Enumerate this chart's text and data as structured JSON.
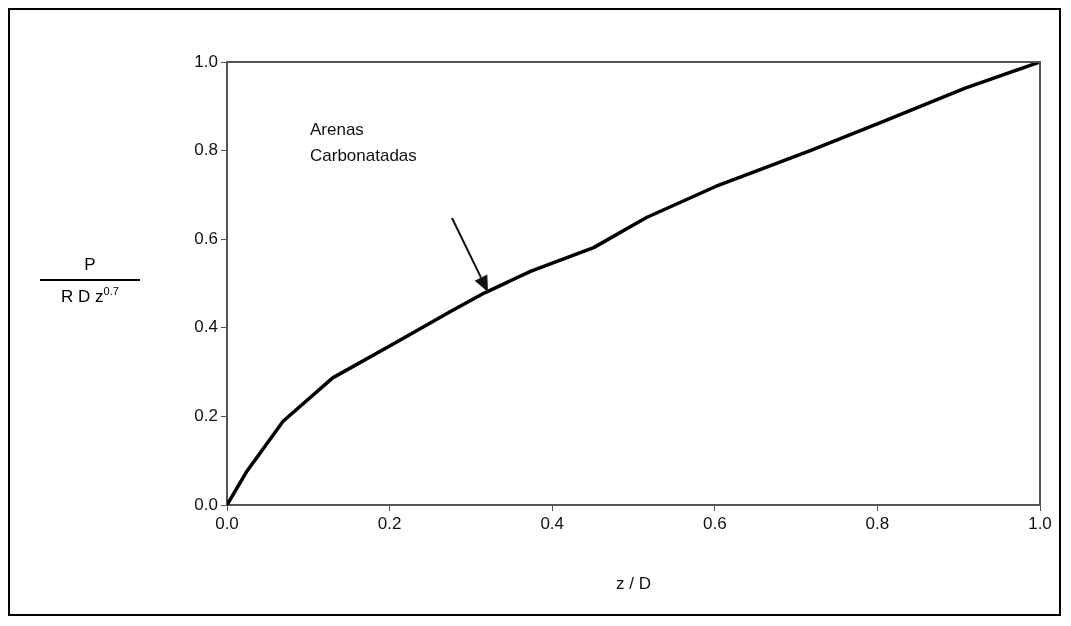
{
  "chart_data": {
    "type": "line",
    "xlabel": "z / D",
    "ylabel": "P\nR D z$^{0.7}$",
    "series": [
      {
        "color": "#000000",
        "x": [
          0,
          0.024,
          0.069,
          0.13,
          0.211,
          0.276,
          0.317,
          0.374,
          0.451,
          0.516,
          0.601,
          0.719,
          0.806,
          0.908,
          1.0
        ],
        "values": [
          0,
          0.075,
          0.189,
          0.287,
          0.37,
          0.438,
          0.479,
          0.528,
          0.581,
          0.649,
          0.719,
          0.801,
          0.865,
          0.941,
          1.0
        ]
      }
    ],
    "xlim": [
      0,
      1
    ],
    "ylim": [
      0,
      1
    ],
    "xticks": [
      {
        "value": 0,
        "label": "0.0"
      },
      {
        "value": 0.2,
        "label": "0.2"
      },
      {
        "value": 0.4,
        "label": "0.4"
      },
      {
        "value": 0.6,
        "label": "0.6"
      },
      {
        "value": 0.8,
        "label": "0.8"
      },
      {
        "value": 1,
        "label": "1.0"
      }
    ],
    "yticks": [
      {
        "value": 0,
        "label": "0.0"
      },
      {
        "value": 0.2,
        "label": "0.2"
      },
      {
        "value": 0.4,
        "label": "0.4"
      },
      {
        "value": 0.6,
        "label": "0.6"
      },
      {
        "value": 0.8,
        "label": "0.8"
      },
      {
        "value": 1,
        "label": "1.0"
      }
    ],
    "annotations": [
      "Arenas\nCarbonatadas"
    ],
    "grid": false,
    "legend": false,
    "marker": "none",
    "line_style": "solid"
  }
}
